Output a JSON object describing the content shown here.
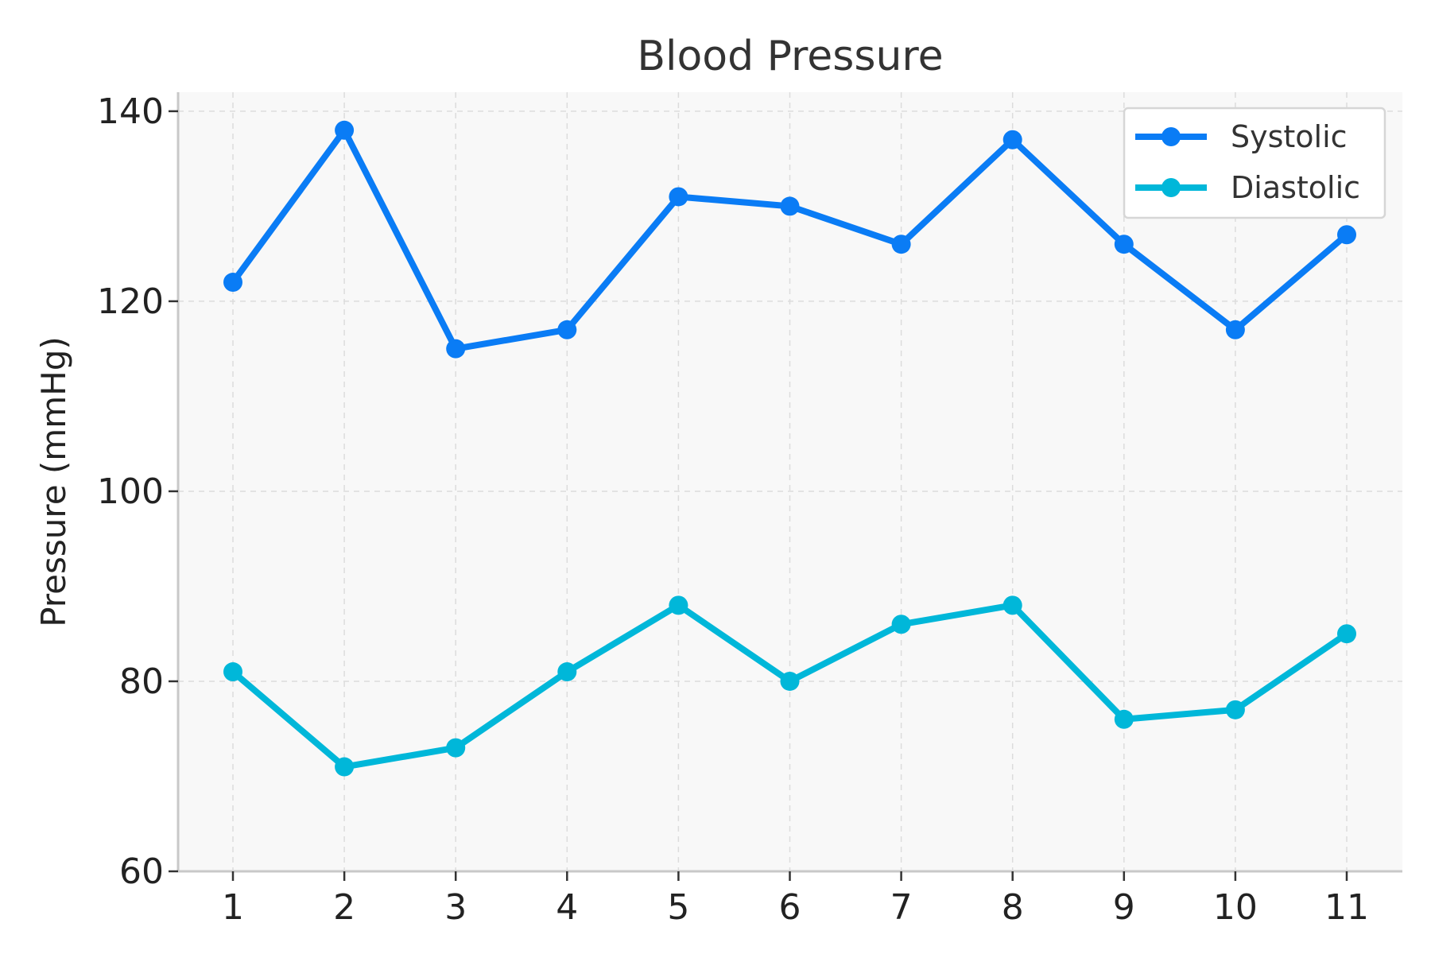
{
  "chart_data": {
    "type": "line",
    "title": "Blood Pressure",
    "xlabel": "",
    "ylabel": "Pressure (mmHg)",
    "x": [
      1,
      2,
      3,
      4,
      5,
      6,
      7,
      8,
      9,
      10,
      11
    ],
    "xticks": [
      "1",
      "2",
      "3",
      "4",
      "5",
      "6",
      "7",
      "8",
      "9",
      "10",
      "11"
    ],
    "ylim": [
      60,
      142
    ],
    "yticks": [
      60,
      80,
      100,
      120,
      140
    ],
    "grid": true,
    "legend_position": "top-right",
    "series": [
      {
        "name": "Systolic",
        "color": "#0a7cf5",
        "values": [
          122,
          138,
          115,
          117,
          131,
          130,
          126,
          137,
          126,
          117,
          127
        ]
      },
      {
        "name": "Diastolic",
        "color": "#00b7d9",
        "values": [
          81,
          71,
          73,
          81,
          88,
          80,
          86,
          88,
          76,
          77,
          85
        ]
      }
    ]
  }
}
